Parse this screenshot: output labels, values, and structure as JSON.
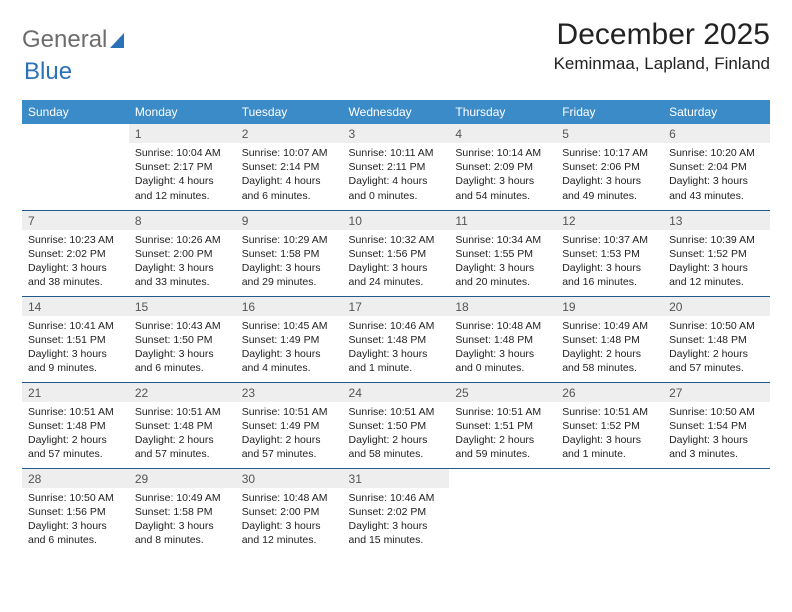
{
  "logo": {
    "text1": "General",
    "text2": "Blue"
  },
  "month_title": "December 2025",
  "location": "Keminmaa, Lapland, Finland",
  "day_headers": [
    "Sunday",
    "Monday",
    "Tuesday",
    "Wednesday",
    "Thursday",
    "Friday",
    "Saturday"
  ],
  "colors": {
    "header_bg": "#3c8bc9",
    "header_text": "#ffffff",
    "daynum_bg": "#eeeeee",
    "rule": "#215a8b",
    "logo_gray": "#6d6d6d",
    "logo_blue": "#2a71b8"
  },
  "weeks": [
    [
      {
        "blank": true
      },
      {
        "num": "1",
        "sunrise": "Sunrise: 10:04 AM",
        "sunset": "Sunset: 2:17 PM",
        "daylight": "Daylight: 4 hours and 12 minutes."
      },
      {
        "num": "2",
        "sunrise": "Sunrise: 10:07 AM",
        "sunset": "Sunset: 2:14 PM",
        "daylight": "Daylight: 4 hours and 6 minutes."
      },
      {
        "num": "3",
        "sunrise": "Sunrise: 10:11 AM",
        "sunset": "Sunset: 2:11 PM",
        "daylight": "Daylight: 4 hours and 0 minutes."
      },
      {
        "num": "4",
        "sunrise": "Sunrise: 10:14 AM",
        "sunset": "Sunset: 2:09 PM",
        "daylight": "Daylight: 3 hours and 54 minutes."
      },
      {
        "num": "5",
        "sunrise": "Sunrise: 10:17 AM",
        "sunset": "Sunset: 2:06 PM",
        "daylight": "Daylight: 3 hours and 49 minutes."
      },
      {
        "num": "6",
        "sunrise": "Sunrise: 10:20 AM",
        "sunset": "Sunset: 2:04 PM",
        "daylight": "Daylight: 3 hours and 43 minutes."
      }
    ],
    [
      {
        "num": "7",
        "sunrise": "Sunrise: 10:23 AM",
        "sunset": "Sunset: 2:02 PM",
        "daylight": "Daylight: 3 hours and 38 minutes."
      },
      {
        "num": "8",
        "sunrise": "Sunrise: 10:26 AM",
        "sunset": "Sunset: 2:00 PM",
        "daylight": "Daylight: 3 hours and 33 minutes."
      },
      {
        "num": "9",
        "sunrise": "Sunrise: 10:29 AM",
        "sunset": "Sunset: 1:58 PM",
        "daylight": "Daylight: 3 hours and 29 minutes."
      },
      {
        "num": "10",
        "sunrise": "Sunrise: 10:32 AM",
        "sunset": "Sunset: 1:56 PM",
        "daylight": "Daylight: 3 hours and 24 minutes."
      },
      {
        "num": "11",
        "sunrise": "Sunrise: 10:34 AM",
        "sunset": "Sunset: 1:55 PM",
        "daylight": "Daylight: 3 hours and 20 minutes."
      },
      {
        "num": "12",
        "sunrise": "Sunrise: 10:37 AM",
        "sunset": "Sunset: 1:53 PM",
        "daylight": "Daylight: 3 hours and 16 minutes."
      },
      {
        "num": "13",
        "sunrise": "Sunrise: 10:39 AM",
        "sunset": "Sunset: 1:52 PM",
        "daylight": "Daylight: 3 hours and 12 minutes."
      }
    ],
    [
      {
        "num": "14",
        "sunrise": "Sunrise: 10:41 AM",
        "sunset": "Sunset: 1:51 PM",
        "daylight": "Daylight: 3 hours and 9 minutes."
      },
      {
        "num": "15",
        "sunrise": "Sunrise: 10:43 AM",
        "sunset": "Sunset: 1:50 PM",
        "daylight": "Daylight: 3 hours and 6 minutes."
      },
      {
        "num": "16",
        "sunrise": "Sunrise: 10:45 AM",
        "sunset": "Sunset: 1:49 PM",
        "daylight": "Daylight: 3 hours and 4 minutes."
      },
      {
        "num": "17",
        "sunrise": "Sunrise: 10:46 AM",
        "sunset": "Sunset: 1:48 PM",
        "daylight": "Daylight: 3 hours and 1 minute."
      },
      {
        "num": "18",
        "sunrise": "Sunrise: 10:48 AM",
        "sunset": "Sunset: 1:48 PM",
        "daylight": "Daylight: 3 hours and 0 minutes."
      },
      {
        "num": "19",
        "sunrise": "Sunrise: 10:49 AM",
        "sunset": "Sunset: 1:48 PM",
        "daylight": "Daylight: 2 hours and 58 minutes."
      },
      {
        "num": "20",
        "sunrise": "Sunrise: 10:50 AM",
        "sunset": "Sunset: 1:48 PM",
        "daylight": "Daylight: 2 hours and 57 minutes."
      }
    ],
    [
      {
        "num": "21",
        "sunrise": "Sunrise: 10:51 AM",
        "sunset": "Sunset: 1:48 PM",
        "daylight": "Daylight: 2 hours and 57 minutes."
      },
      {
        "num": "22",
        "sunrise": "Sunrise: 10:51 AM",
        "sunset": "Sunset: 1:48 PM",
        "daylight": "Daylight: 2 hours and 57 minutes."
      },
      {
        "num": "23",
        "sunrise": "Sunrise: 10:51 AM",
        "sunset": "Sunset: 1:49 PM",
        "daylight": "Daylight: 2 hours and 57 minutes."
      },
      {
        "num": "24",
        "sunrise": "Sunrise: 10:51 AM",
        "sunset": "Sunset: 1:50 PM",
        "daylight": "Daylight: 2 hours and 58 minutes."
      },
      {
        "num": "25",
        "sunrise": "Sunrise: 10:51 AM",
        "sunset": "Sunset: 1:51 PM",
        "daylight": "Daylight: 2 hours and 59 minutes."
      },
      {
        "num": "26",
        "sunrise": "Sunrise: 10:51 AM",
        "sunset": "Sunset: 1:52 PM",
        "daylight": "Daylight: 3 hours and 1 minute."
      },
      {
        "num": "27",
        "sunrise": "Sunrise: 10:50 AM",
        "sunset": "Sunset: 1:54 PM",
        "daylight": "Daylight: 3 hours and 3 minutes."
      }
    ],
    [
      {
        "num": "28",
        "sunrise": "Sunrise: 10:50 AM",
        "sunset": "Sunset: 1:56 PM",
        "daylight": "Daylight: 3 hours and 6 minutes."
      },
      {
        "num": "29",
        "sunrise": "Sunrise: 10:49 AM",
        "sunset": "Sunset: 1:58 PM",
        "daylight": "Daylight: 3 hours and 8 minutes."
      },
      {
        "num": "30",
        "sunrise": "Sunrise: 10:48 AM",
        "sunset": "Sunset: 2:00 PM",
        "daylight": "Daylight: 3 hours and 12 minutes."
      },
      {
        "num": "31",
        "sunrise": "Sunrise: 10:46 AM",
        "sunset": "Sunset: 2:02 PM",
        "daylight": "Daylight: 3 hours and 15 minutes."
      },
      {
        "blank": true
      },
      {
        "blank": true
      },
      {
        "blank": true
      }
    ]
  ]
}
